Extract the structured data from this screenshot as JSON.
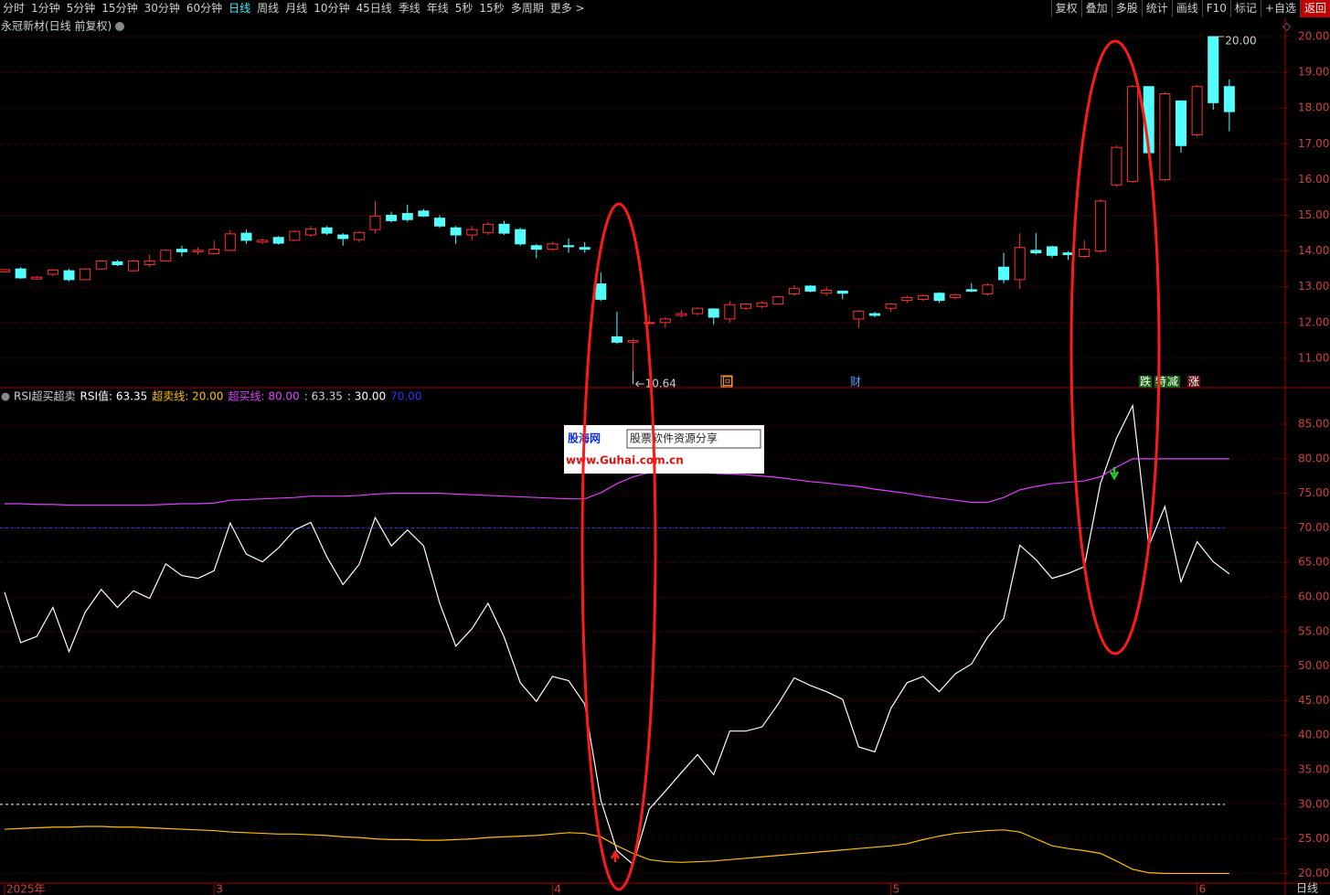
{
  "toolbar": {
    "tabs": [
      "分时",
      "1分钟",
      "5分钟",
      "15分钟",
      "30分钟",
      "60分钟",
      {
        "label": "日线",
        "active": true
      },
      "周线",
      "月线",
      "10分钟",
      "45日线",
      "季线",
      "年线",
      "5秒",
      "15秒",
      "多周期",
      "更多 >"
    ],
    "buttons": [
      "复权",
      "叠加",
      "多股",
      "统计",
      "画线",
      "F10",
      "标记",
      "+自选",
      "返回"
    ]
  },
  "chart_data": [
    {
      "type": "candlestick",
      "title": "永冠新材(日线 前复权)",
      "categories": [
        "2025年",
        null,
        null,
        null,
        null,
        null,
        null,
        null,
        null,
        null,
        null,
        null,
        null,
        "3",
        null,
        null,
        null,
        null,
        null,
        null,
        null,
        null,
        null,
        null,
        null,
        null,
        null,
        null,
        null,
        null,
        null,
        null,
        null,
        null,
        "4",
        null,
        null,
        null,
        null,
        null,
        null,
        null,
        null,
        null,
        null,
        null,
        null,
        null,
        null,
        null,
        null,
        null,
        null,
        null,
        null,
        "5",
        null,
        null,
        null,
        null,
        null,
        null,
        null,
        null,
        null,
        null,
        null,
        null,
        null,
        null,
        null,
        null,
        null,
        null,
        "6",
        null,
        null
      ],
      "open": [
        13.42,
        13.5,
        13.22,
        13.35,
        13.45,
        13.2,
        13.5,
        13.7,
        13.45,
        13.62,
        13.72,
        14.05,
        13.98,
        13.93,
        14.02,
        14.5,
        14.25,
        14.38,
        14.3,
        14.45,
        14.65,
        14.45,
        14.32,
        14.6,
        15.0,
        15.05,
        15.12,
        14.92,
        14.65,
        14.45,
        14.52,
        14.75,
        14.6,
        14.15,
        14.05,
        14.15,
        14.1,
        13.08,
        11.6,
        11.45,
        11.98,
        12.0,
        12.2,
        12.25,
        12.38,
        12.1,
        12.4,
        12.45,
        12.52,
        12.8,
        13.02,
        12.82,
        12.88,
        12.1,
        12.25,
        12.4,
        12.62,
        12.65,
        12.82,
        12.7,
        12.92,
        12.8,
        13.55,
        13.2,
        14.02,
        14.12,
        13.95,
        13.85,
        14.0,
        15.85,
        15.95,
        18.6,
        16.0,
        18.2,
        17.25,
        20.0,
        18.6
      ],
      "high": [
        13.5,
        13.55,
        13.3,
        13.5,
        13.5,
        13.52,
        13.75,
        13.75,
        13.76,
        13.9,
        14.05,
        14.15,
        14.1,
        14.3,
        14.6,
        14.6,
        14.35,
        14.42,
        14.58,
        14.7,
        14.7,
        14.5,
        14.55,
        15.4,
        15.1,
        15.3,
        15.18,
        15.0,
        14.7,
        14.7,
        14.8,
        14.85,
        14.65,
        14.2,
        14.25,
        14.35,
        14.25,
        13.4,
        12.3,
        11.55,
        12.2,
        12.15,
        12.35,
        12.42,
        12.4,
        12.6,
        12.55,
        12.6,
        12.75,
        13.05,
        13.05,
        13.0,
        12.9,
        12.35,
        12.3,
        12.55,
        12.75,
        12.78,
        12.85,
        12.8,
        13.1,
        13.1,
        13.95,
        14.5,
        14.5,
        14.15,
        14.0,
        14.3,
        15.45,
        16.95,
        18.65,
        18.6,
        18.45,
        18.2,
        18.65,
        20.0,
        18.8
      ],
      "low": [
        13.4,
        13.22,
        13.2,
        13.3,
        13.15,
        13.18,
        13.48,
        13.58,
        13.42,
        13.55,
        13.7,
        13.85,
        13.9,
        13.9,
        14.0,
        14.2,
        14.2,
        14.18,
        14.28,
        14.4,
        14.45,
        14.15,
        14.25,
        14.5,
        14.8,
        14.82,
        14.95,
        14.65,
        14.2,
        14.3,
        14.45,
        14.45,
        14.15,
        13.8,
        14.02,
        13.95,
        13.95,
        12.6,
        11.4,
        10.64,
        11.95,
        11.85,
        12.15,
        12.2,
        11.95,
        12.0,
        12.35,
        12.4,
        12.5,
        12.75,
        12.85,
        12.75,
        12.65,
        11.85,
        12.15,
        12.3,
        12.55,
        12.6,
        12.55,
        12.65,
        12.85,
        12.75,
        13.1,
        12.95,
        13.9,
        13.8,
        13.75,
        13.8,
        13.95,
        15.8,
        15.9,
        16.7,
        15.95,
        16.75,
        17.2,
        17.95,
        17.35
      ],
      "close": [
        13.48,
        13.25,
        13.27,
        13.47,
        13.2,
        13.5,
        13.72,
        13.62,
        13.72,
        13.72,
        14.02,
        13.98,
        14.02,
        14.05,
        14.48,
        14.3,
        14.3,
        14.22,
        14.55,
        14.62,
        14.5,
        14.35,
        14.52,
        14.98,
        14.85,
        14.88,
        14.98,
        14.7,
        14.45,
        14.6,
        14.75,
        14.5,
        14.2,
        14.05,
        14.2,
        14.12,
        14.05,
        12.65,
        11.45,
        11.5,
        12.0,
        12.1,
        12.25,
        12.4,
        12.15,
        12.5,
        12.52,
        12.55,
        12.72,
        12.95,
        12.88,
        12.9,
        12.82,
        12.32,
        12.2,
        12.52,
        12.7,
        12.75,
        12.62,
        12.78,
        12.88,
        13.05,
        13.2,
        14.1,
        13.95,
        13.88,
        13.9,
        14.05,
        15.4,
        16.9,
        18.6,
        16.75,
        18.4,
        16.95,
        18.6,
        18.15,
        17.9
      ],
      "up_color": "#ff3232",
      "down_color": "#54ffff",
      "ylim": [
        10.18,
        20.46
      ],
      "yticks": [
        {
          "value": 11,
          "label": "11.00"
        },
        {
          "value": 12,
          "label": "12.00"
        },
        {
          "value": 13,
          "label": "13.00"
        },
        {
          "value": 14,
          "label": "14.00"
        },
        {
          "value": 15,
          "label": "15.00"
        },
        {
          "value": 16,
          "label": "16.00"
        },
        {
          "value": 17,
          "label": "17.00"
        },
        {
          "value": 18,
          "label": "18.00"
        },
        {
          "value": 19,
          "label": "19.00"
        },
        {
          "value": 20,
          "label": "20.00"
        }
      ],
      "grid": true,
      "high_label": {
        "value": 20.0,
        "label": "20.00"
      },
      "low_label": {
        "value": 10.64,
        "label": "10.64"
      },
      "markers": [
        "回",
        "财",
        "跌",
        "特",
        "减",
        "涨"
      ]
    },
    {
      "type": "line",
      "title": "RSI超买超卖",
      "series": [
        {
          "name": "RSI值",
          "legend_value": ": 63.35",
          "color": "#ffffff",
          "values": [
            60.7,
            53.4,
            54.3,
            58.5,
            52.1,
            57.8,
            61.1,
            58.5,
            60.9,
            59.8,
            64.8,
            63.1,
            62.7,
            63.8,
            70.7,
            66.2,
            65.1,
            67.1,
            69.7,
            70.8,
            65.8,
            61.8,
            64.7,
            71.5,
            67.4,
            69.7,
            67.4,
            59.1,
            52.9,
            55.4,
            59.1,
            54.2,
            47.6,
            44.9,
            48.5,
            47.9,
            44.5,
            30.6,
            23.3,
            21.3,
            29.3,
            31.9,
            34.6,
            37.2,
            34.3,
            40.6,
            40.6,
            41.2,
            44.5,
            48.3,
            47.2,
            46.3,
            45.2,
            38.3,
            37.6,
            43.9,
            47.6,
            48.5,
            46.3,
            48.9,
            50.3,
            54.2,
            56.9,
            67.5,
            65.4,
            62.7,
            63.4,
            64.4,
            76.4,
            83.0,
            87.7,
            67.4,
            73.1,
            62.2,
            68.0,
            65.1,
            63.35
          ]
        },
        {
          "name": "超卖线",
          "legend_value": ": 20.00",
          "color": "#ffc000",
          "values": [
            26.4,
            26.5,
            26.6,
            26.7,
            26.7,
            26.8,
            26.8,
            26.7,
            26.7,
            26.6,
            26.5,
            26.4,
            26.3,
            26.2,
            26.0,
            25.9,
            25.8,
            25.7,
            25.7,
            25.6,
            25.5,
            25.3,
            25.2,
            25.0,
            24.9,
            24.9,
            24.8,
            24.8,
            24.9,
            25.0,
            25.2,
            25.3,
            25.4,
            25.5,
            25.7,
            25.9,
            25.8,
            25.3,
            24.0,
            22.9,
            22.0,
            21.7,
            21.6,
            21.7,
            21.8,
            22.0,
            22.2,
            22.4,
            22.6,
            22.8,
            23.0,
            23.2,
            23.4,
            23.6,
            23.8,
            24.0,
            24.3,
            24.9,
            25.4,
            25.8,
            26.0,
            26.2,
            26.3,
            26.0,
            25.0,
            24.0,
            23.6,
            23.3,
            22.9,
            21.8,
            20.6,
            20.1,
            20.0,
            20.0,
            20.0,
            20.0,
            20.0
          ]
        },
        {
          "name": "超买线",
          "legend_value": ": 80.00",
          "color": "#e040ff",
          "values": [
            73.5,
            73.5,
            73.4,
            73.4,
            73.3,
            73.3,
            73.3,
            73.3,
            73.3,
            73.3,
            73.4,
            73.5,
            73.5,
            73.6,
            74.0,
            74.1,
            74.2,
            74.3,
            74.4,
            74.6,
            74.6,
            74.6,
            74.7,
            74.9,
            75.0,
            75.0,
            75.0,
            75.0,
            74.9,
            74.8,
            74.7,
            74.6,
            74.5,
            74.4,
            74.3,
            74.2,
            74.2,
            75.1,
            76.4,
            77.4,
            78.0,
            78.1,
            78.1,
            78.0,
            77.9,
            77.8,
            77.7,
            77.5,
            77.3,
            77.0,
            76.7,
            76.5,
            76.2,
            76.0,
            75.6,
            75.3,
            75.0,
            74.6,
            74.3,
            74.0,
            73.7,
            73.7,
            74.4,
            75.5,
            76.0,
            76.4,
            76.6,
            76.8,
            77.4,
            78.8,
            80.0,
            80.0,
            80.0,
            80.0,
            80.0,
            80.0,
            80.0
          ]
        }
      ],
      "extra_labels": [
        ": 63.35"
      ],
      "ref_lines": [
        {
          "value": 30,
          "label": ": 30.00",
          "color": "#ffffff"
        },
        {
          "value": 70,
          "label": "70.00",
          "color": "#3030ff"
        }
      ],
      "ylim": [
        18.6,
        90.3
      ],
      "yticks": [
        {
          "value": 20,
          "label": "20.00"
        },
        {
          "value": 25,
          "label": "25.00"
        },
        {
          "value": 30,
          "label": "30.00"
        },
        {
          "value": 35,
          "label": "35.00"
        },
        {
          "value": 40,
          "label": "40.00"
        },
        {
          "value": 45,
          "label": "45.00"
        },
        {
          "value": 50,
          "label": "50.00"
        },
        {
          "value": 55,
          "label": "55.00"
        },
        {
          "value": 60,
          "label": "60.00"
        },
        {
          "value": 65,
          "label": "65.00"
        },
        {
          "value": 70,
          "label": "70.00"
        },
        {
          "value": 75,
          "label": "75.00"
        },
        {
          "value": 80,
          "label": "80.00"
        },
        {
          "value": 85,
          "label": "85.00"
        }
      ],
      "grid": true
    }
  ],
  "footer": "日线",
  "watermark": {
    "brand": "股海网",
    "slogan": "股票软件资源分享",
    "url": "www.Guhai.com.cn"
  }
}
